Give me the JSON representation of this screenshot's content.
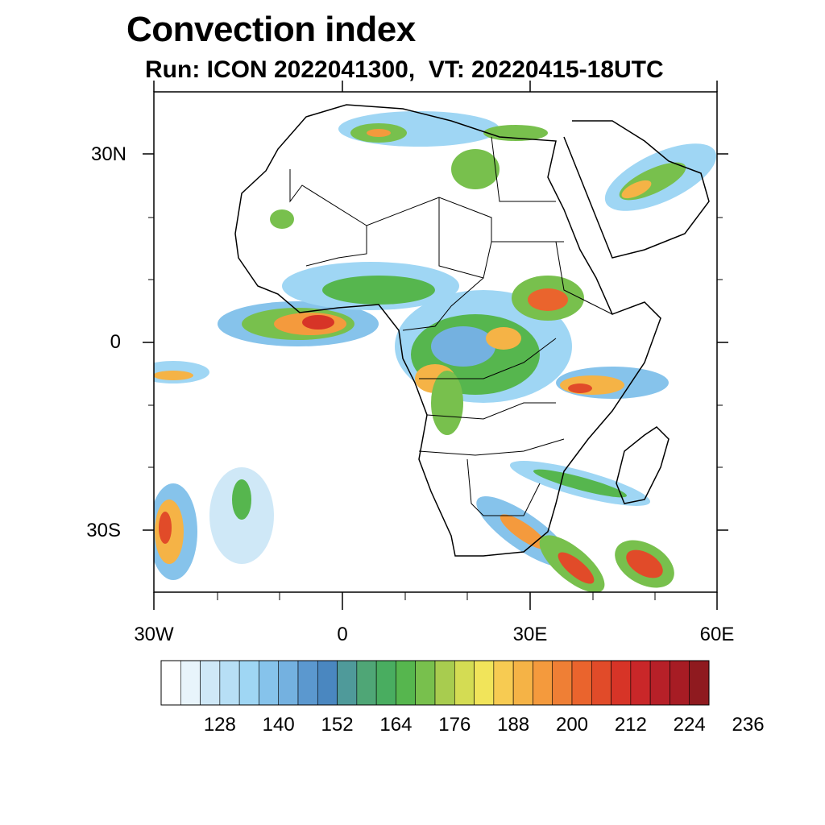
{
  "title": "Convection index",
  "subtitle": "Run: ICON 2022041300,  VT: 20220415-18UTC",
  "axes": {
    "lat_labels": [
      "30N",
      "0",
      "30S"
    ],
    "lon_labels": [
      "30W",
      "0",
      "30E",
      "60E"
    ]
  },
  "colorbar": {
    "labels": [
      "128",
      "140",
      "152",
      "164",
      "176",
      "188",
      "200",
      "212",
      "224",
      "236"
    ],
    "colors": [
      "#ffffff",
      "#e8f4fb",
      "#cfe8f7",
      "#b7dff5",
      "#9fd6f4",
      "#86c3eb",
      "#74b1e0",
      "#5b98cf",
      "#4a87c0",
      "#4f9a9a",
      "#4fa676",
      "#49ad60",
      "#56b64e",
      "#78c04d",
      "#a8cc4f",
      "#d4dc53",
      "#f1e45a",
      "#f7cb52",
      "#f5b346",
      "#f49a3d",
      "#ef7f35",
      "#ea642d",
      "#e14b29",
      "#d73427",
      "#c92729",
      "#b72028",
      "#a71c24",
      "#8f1a1f"
    ]
  }
}
